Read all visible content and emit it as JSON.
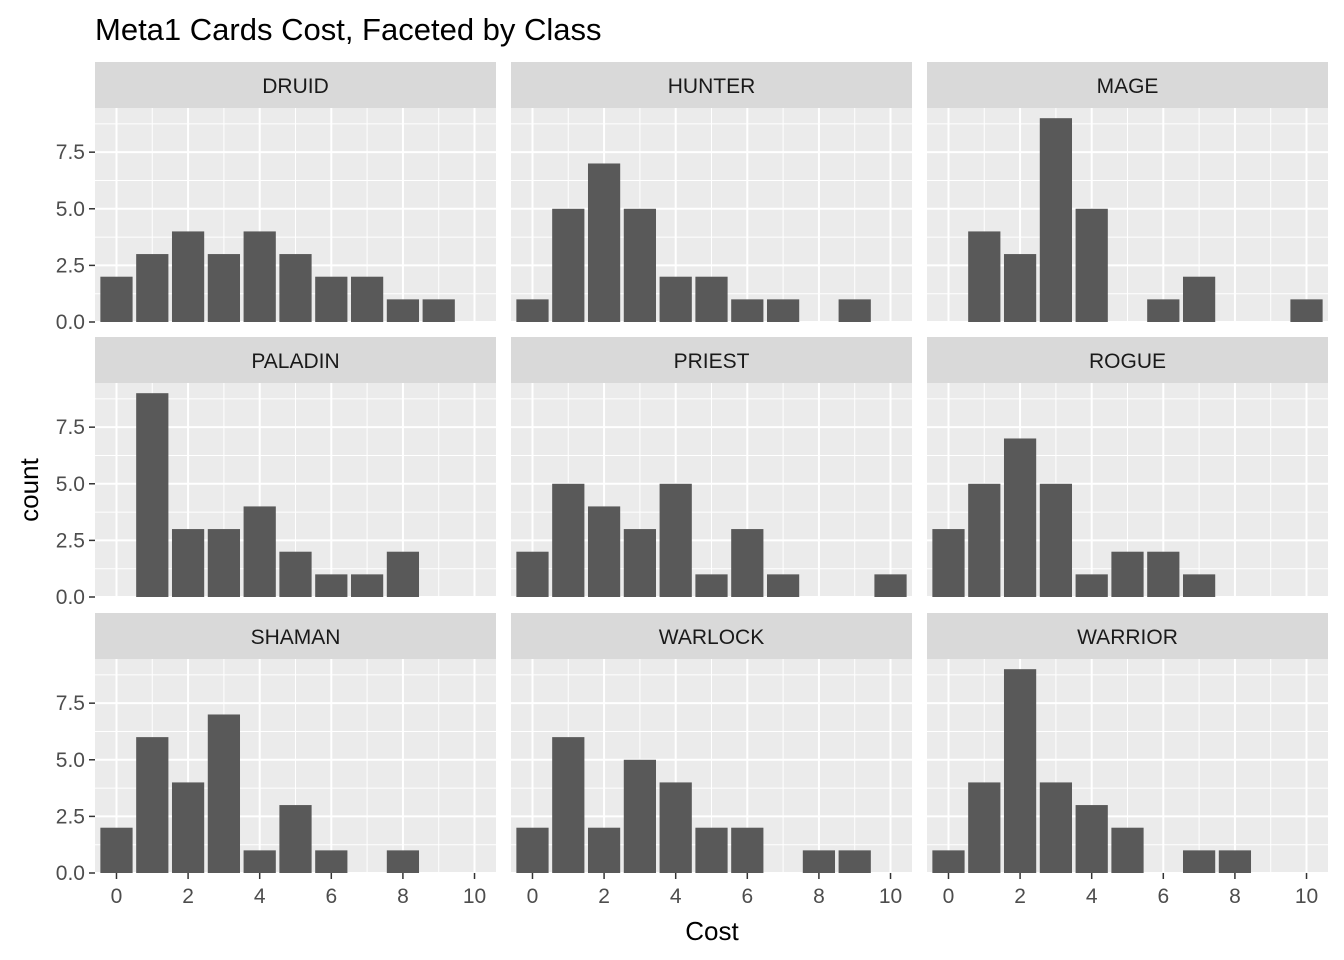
{
  "chart_data": {
    "type": "bar",
    "title": "Meta1 Cards Cost, Faceted by Class",
    "xlabel": "Cost",
    "ylabel": "count",
    "xlim": [
      -0.6,
      10.6
    ],
    "ylim": [
      0,
      9.45
    ],
    "x_ticks": [
      0,
      2,
      4,
      6,
      8,
      10
    ],
    "y_ticks": [
      0,
      2.5,
      5,
      7.5
    ],
    "y_tick_labels": [
      "0.0",
      "2.5",
      "5.0",
      "7.5"
    ],
    "grid": true,
    "facet_layout": "3x3",
    "colors": {
      "bar": "#595959",
      "panel_background": "#ebebeb",
      "strip_background": "#d9d9d9",
      "grid": "#ffffff"
    },
    "facets": [
      {
        "name": "DRUID",
        "values": [
          {
            "x": 0,
            "y": 2
          },
          {
            "x": 1,
            "y": 3
          },
          {
            "x": 2,
            "y": 4
          },
          {
            "x": 3,
            "y": 3
          },
          {
            "x": 4,
            "y": 4
          },
          {
            "x": 5,
            "y": 3
          },
          {
            "x": 6,
            "y": 2
          },
          {
            "x": 7,
            "y": 2
          },
          {
            "x": 8,
            "y": 1
          },
          {
            "x": 9,
            "y": 1
          }
        ]
      },
      {
        "name": "HUNTER",
        "values": [
          {
            "x": 0,
            "y": 1
          },
          {
            "x": 1,
            "y": 5
          },
          {
            "x": 2,
            "y": 7
          },
          {
            "x": 3,
            "y": 5
          },
          {
            "x": 4,
            "y": 2
          },
          {
            "x": 5,
            "y": 2
          },
          {
            "x": 6,
            "y": 1
          },
          {
            "x": 7,
            "y": 1
          },
          {
            "x": 9,
            "y": 1
          }
        ]
      },
      {
        "name": "MAGE",
        "values": [
          {
            "x": 1,
            "y": 4
          },
          {
            "x": 2,
            "y": 3
          },
          {
            "x": 3,
            "y": 9
          },
          {
            "x": 4,
            "y": 5
          },
          {
            "x": 6,
            "y": 1
          },
          {
            "x": 7,
            "y": 2
          },
          {
            "x": 10,
            "y": 1
          }
        ]
      },
      {
        "name": "PALADIN",
        "values": [
          {
            "x": 1,
            "y": 9
          },
          {
            "x": 2,
            "y": 3
          },
          {
            "x": 3,
            "y": 3
          },
          {
            "x": 4,
            "y": 4
          },
          {
            "x": 5,
            "y": 2
          },
          {
            "x": 6,
            "y": 1
          },
          {
            "x": 7,
            "y": 1
          },
          {
            "x": 8,
            "y": 2
          }
        ]
      },
      {
        "name": "PRIEST",
        "values": [
          {
            "x": 0,
            "y": 2
          },
          {
            "x": 1,
            "y": 5
          },
          {
            "x": 2,
            "y": 4
          },
          {
            "x": 3,
            "y": 3
          },
          {
            "x": 4,
            "y": 5
          },
          {
            "x": 5,
            "y": 1
          },
          {
            "x": 6,
            "y": 3
          },
          {
            "x": 7,
            "y": 1
          },
          {
            "x": 10,
            "y": 1
          }
        ]
      },
      {
        "name": "ROGUE",
        "values": [
          {
            "x": 0,
            "y": 3
          },
          {
            "x": 1,
            "y": 5
          },
          {
            "x": 2,
            "y": 7
          },
          {
            "x": 3,
            "y": 5
          },
          {
            "x": 4,
            "y": 1
          },
          {
            "x": 5,
            "y": 2
          },
          {
            "x": 6,
            "y": 2
          },
          {
            "x": 7,
            "y": 1
          }
        ]
      },
      {
        "name": "SHAMAN",
        "values": [
          {
            "x": 0,
            "y": 2
          },
          {
            "x": 1,
            "y": 6
          },
          {
            "x": 2,
            "y": 4
          },
          {
            "x": 3,
            "y": 7
          },
          {
            "x": 4,
            "y": 1
          },
          {
            "x": 5,
            "y": 3
          },
          {
            "x": 6,
            "y": 1
          },
          {
            "x": 8,
            "y": 1
          }
        ]
      },
      {
        "name": "WARLOCK",
        "values": [
          {
            "x": 0,
            "y": 2
          },
          {
            "x": 1,
            "y": 6
          },
          {
            "x": 2,
            "y": 2
          },
          {
            "x": 3,
            "y": 5
          },
          {
            "x": 4,
            "y": 4
          },
          {
            "x": 5,
            "y": 2
          },
          {
            "x": 6,
            "y": 2
          },
          {
            "x": 8,
            "y": 1
          },
          {
            "x": 9,
            "y": 1
          }
        ]
      },
      {
        "name": "WARRIOR",
        "values": [
          {
            "x": 0,
            "y": 1
          },
          {
            "x": 1,
            "y": 4
          },
          {
            "x": 2,
            "y": 9
          },
          {
            "x": 3,
            "y": 4
          },
          {
            "x": 4,
            "y": 3
          },
          {
            "x": 5,
            "y": 2
          },
          {
            "x": 7,
            "y": 1
          },
          {
            "x": 8,
            "y": 1
          }
        ]
      }
    ]
  }
}
